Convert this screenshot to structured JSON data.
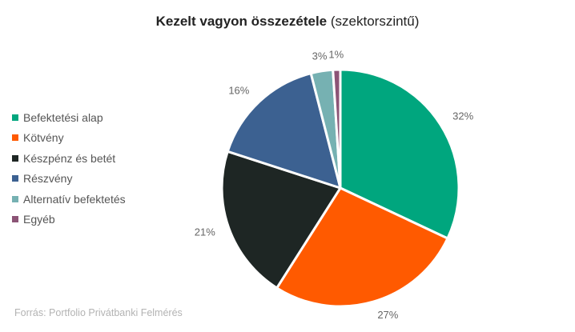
{
  "title": {
    "bold_part": "Kezelt vagyon összezétele",
    "normal_part": " (szektorszintű)"
  },
  "source": "Forrás: Portfolio Privátbanki Felmérés",
  "chart_data": {
    "type": "pie",
    "title": "Kezelt vagyon összezétele (szektorszintű)",
    "unit": "%",
    "legend_position": "left",
    "categories": [
      "Befektetési alap",
      "Kötvény",
      "Készpénz és betét",
      "Részvény",
      "Alternatív befektetés",
      "Egyéb"
    ],
    "values": [
      32,
      27,
      21,
      16,
      3,
      1
    ],
    "labels": [
      "32%",
      "27%",
      "21%",
      "16%",
      "3%",
      "1%"
    ],
    "colors": [
      "#00a67e",
      "#ff5a00",
      "#1e2624",
      "#3c6191",
      "#76b1b2",
      "#8c5476"
    ]
  }
}
